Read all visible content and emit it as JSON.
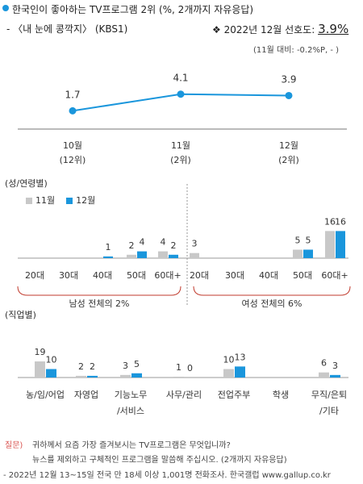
{
  "header": {
    "title": "한국인이 좋아하는 TV프로그램 2위",
    "title_suffix": "(%, 2개까지 자유응답)",
    "program": "- 〈내 눈에 콩깍지〉 (KBS1)",
    "pref_label": "❖  2022년 12월 선호도:",
    "pref_value": "3.9%",
    "change": "(11월 대비: -0.2%P,   - )"
  },
  "colors": {
    "nov": "#c8c8c8",
    "dec": "#1a96dc",
    "line": "#1a96dc",
    "accent": "#d9534f"
  },
  "chart_data": [
    {
      "type": "line",
      "categories": [
        "10월",
        "11월",
        "12월"
      ],
      "category_sub": [
        "(12위)",
        "(2위)",
        "(2위)"
      ],
      "values": [
        1.7,
        4.1,
        3.9
      ]
    },
    {
      "type": "bar",
      "title": "(성/연령별)",
      "legend": [
        "11월",
        "12월"
      ],
      "groups": [
        {
          "label": "남성 전체의 2%",
          "categories": [
            "20대",
            "30대",
            "40대",
            "50대",
            "60대+"
          ],
          "nov": [
            0,
            0,
            0,
            2,
            4
          ],
          "dec": [
            0,
            0,
            1,
            4,
            2
          ],
          "nov_labels": [
            "",
            "",
            "",
            "2",
            "4"
          ],
          "dec_labels": [
            "",
            "",
            "1",
            "4",
            "2"
          ]
        },
        {
          "label": "여성 전체의 6%",
          "categories": [
            "20대",
            "30대",
            "40대",
            "50대",
            "60대+"
          ],
          "nov": [
            3,
            0,
            0,
            5,
            16
          ],
          "dec": [
            0,
            0,
            0,
            5,
            16
          ],
          "nov_labels": [
            "3",
            "",
            "",
            "5",
            "16"
          ],
          "dec_labels": [
            "",
            "",
            "",
            "5",
            "16"
          ]
        }
      ]
    },
    {
      "type": "bar",
      "title": "(직업별)",
      "categories": [
        "농/임/어업",
        "자영업",
        "기능노무\n/서비스",
        "사무/관리",
        "전업주부",
        "학생",
        "무직/은퇴\n/기타"
      ],
      "nov": [
        19,
        2,
        3,
        1,
        10,
        0,
        6
      ],
      "dec": [
        10,
        2,
        5,
        0,
        13,
        0,
        3
      ],
      "nov_labels": [
        "19",
        "2",
        "3",
        "1",
        "10",
        "",
        "6"
      ],
      "dec_labels": [
        "10",
        "2",
        "5",
        "0",
        "13",
        "",
        "3"
      ]
    }
  ],
  "footer": {
    "q_label": "질문)",
    "q_line1": "귀하께서 요즘 가장 즐겨보시는 TV프로그램은 무엇입니까?",
    "q_line2": "뉴스를 제외하고 구체적인 프로그램을 말씀해 주십시오. (2개까지 자유응답)",
    "source": "- 2022년 12월 13~15일 전국 만 18세 이상 1,001명 전화조사. 한국갤럽 www.gallup.co.kr"
  }
}
